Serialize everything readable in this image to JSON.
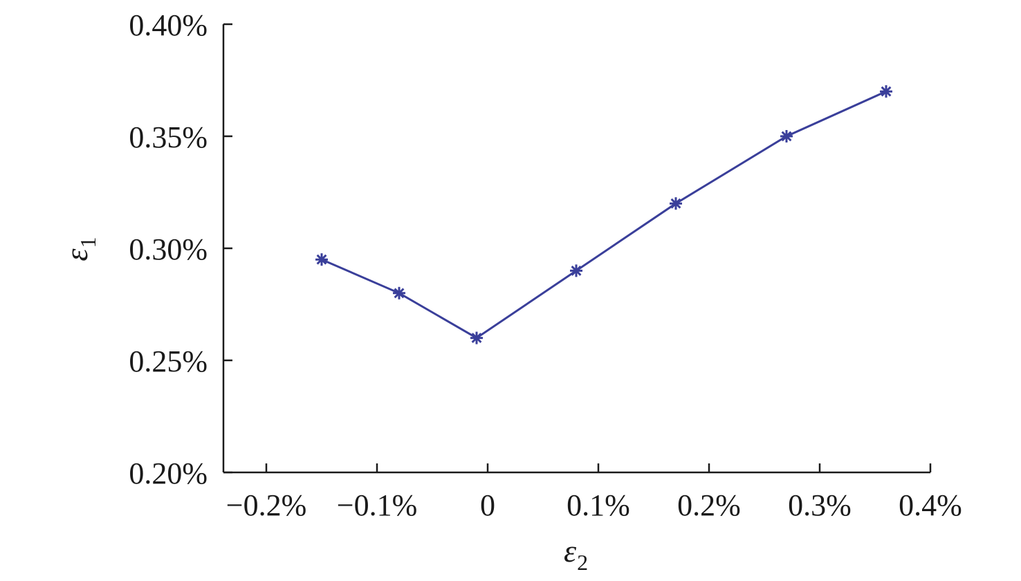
{
  "chart_data": {
    "type": "line",
    "title": "",
    "xlabel": "ε",
    "xlabel_sub": "2",
    "ylabel": "ε",
    "ylabel_sub": "1",
    "xlim": [
      -0.0025,
      0.004
    ],
    "ylim": [
      0.002,
      0.004
    ],
    "x_ticks": [
      {
        "value": -0.002,
        "label": "−0.2%"
      },
      {
        "value": -0.001,
        "label": "−0.1%"
      },
      {
        "value": 0,
        "label": "0"
      },
      {
        "value": 0.001,
        "label": "0.1%"
      },
      {
        "value": 0.002,
        "label": "0.2%"
      },
      {
        "value": 0.003,
        "label": "0.3%"
      },
      {
        "value": 0.004,
        "label": "0.4%"
      }
    ],
    "y_ticks": [
      {
        "value": 0.002,
        "label": "0.20%"
      },
      {
        "value": 0.0025,
        "label": "0.25%"
      },
      {
        "value": 0.003,
        "label": "0.30%"
      },
      {
        "value": 0.0035,
        "label": "0.35%"
      },
      {
        "value": 0.004,
        "label": "0.40%"
      }
    ],
    "grid": false,
    "series": [
      {
        "color": "#3a3f9a",
        "marker": "asterisk",
        "x": [
          -0.0015,
          -0.0008,
          -0.0001,
          0.0008,
          0.0017,
          0.0027,
          0.0036
        ],
        "y": [
          0.00295,
          0.0028,
          0.0026,
          0.0029,
          0.0032,
          0.0035,
          0.0037
        ]
      }
    ]
  }
}
